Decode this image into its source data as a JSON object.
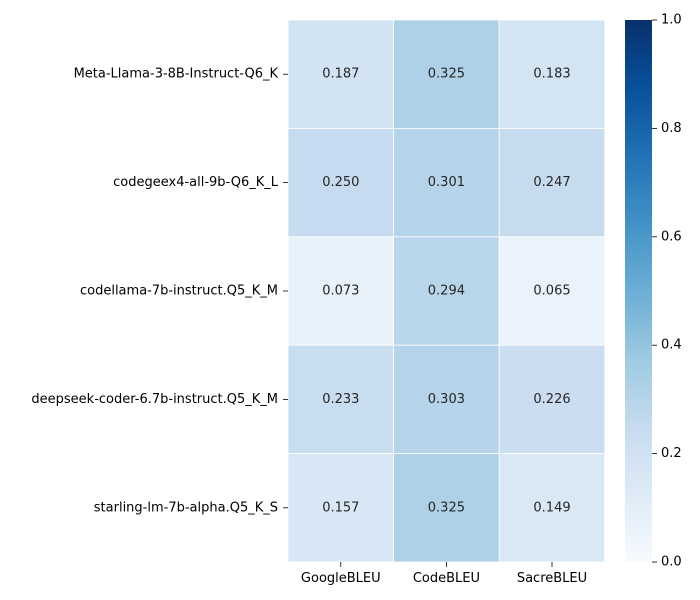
{
  "chart_data": {
    "type": "heatmap",
    "title": "",
    "xlabel": "",
    "ylabel": "",
    "columns": [
      "GoogleBLEU",
      "CodeBLEU",
      "SacreBLEU"
    ],
    "rows": [
      "Meta-Llama-3-8B-Instruct-Q6_K",
      "codegeex4-all-9b-Q6_K_L",
      "codellama-7b-instruct.Q5_K_M",
      "deepseek-coder-6.7b-instruct.Q5_K_M",
      "starling-lm-7b-alpha.Q5_K_S"
    ],
    "values": [
      [
        0.187,
        0.325,
        0.183
      ],
      [
        0.25,
        0.301,
        0.247
      ],
      [
        0.073,
        0.294,
        0.065
      ],
      [
        0.233,
        0.303,
        0.226
      ],
      [
        0.157,
        0.325,
        0.149
      ]
    ],
    "annotations": [
      [
        "0.187",
        "0.325",
        "0.183"
      ],
      [
        "0.250",
        "0.301",
        "0.247"
      ],
      [
        "0.073",
        "0.294",
        "0.065"
      ],
      [
        "0.233",
        "0.303",
        "0.226"
      ],
      [
        "0.157",
        "0.325",
        "0.149"
      ]
    ],
    "colormap": "Blues",
    "vmin": 0.0,
    "vmax": 1.0,
    "colorbar_ticks": [
      "0.0",
      "0.2",
      "0.4",
      "0.6",
      "0.8",
      "1.0"
    ],
    "colorbar_tick_values": [
      0.0,
      0.2,
      0.4,
      0.6,
      0.8,
      1.0
    ],
    "cell_border_color": "#ffffff",
    "text_color_dark": "#262626",
    "text_color_light": "#ffffff"
  }
}
